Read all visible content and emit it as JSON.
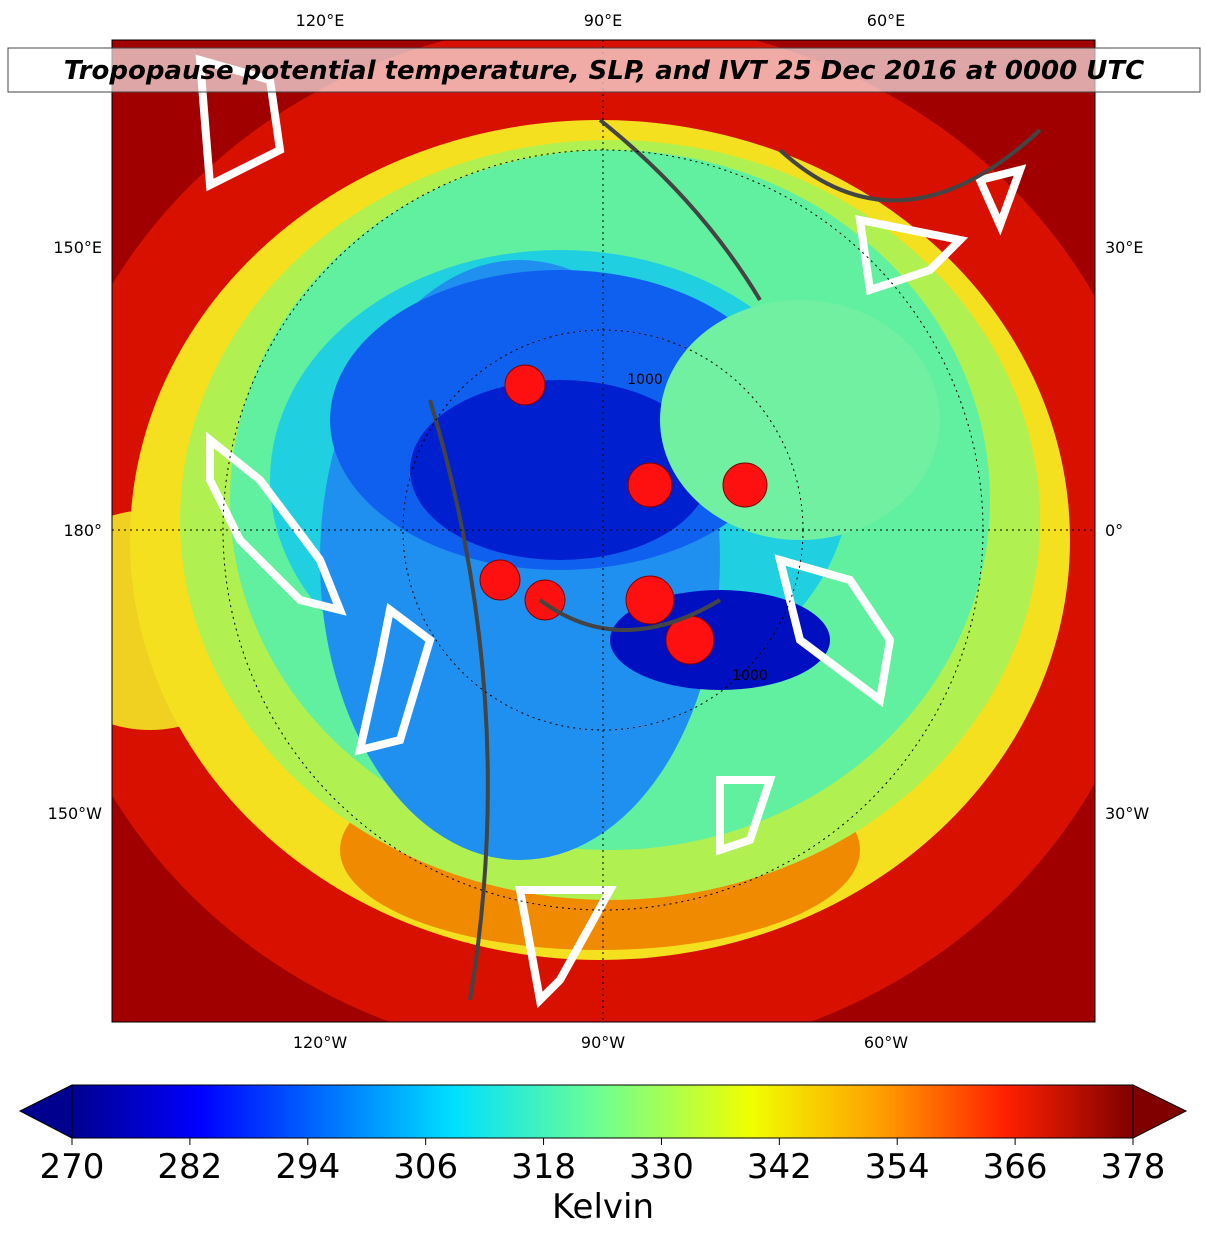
{
  "title": "Tropopause potential temperature, SLP, and IVT 25 Dec 2016 at 0000 UTC",
  "map": {
    "lon_labels_top": [
      "120°E",
      "90°E",
      "60°E"
    ],
    "lon_labels_bottom": [
      "120°W",
      "90°W",
      "60°W"
    ],
    "lon_labels_left": [
      "150°E",
      "180°",
      "150°W"
    ],
    "lon_labels_right": [
      "30°E",
      "0°",
      "30°W"
    ],
    "contour_labels": [
      "1000",
      "1000"
    ]
  },
  "colorbar": {
    "label": "Kelvin",
    "lim": [
      270,
      378
    ],
    "ticks": [
      270,
      282,
      294,
      306,
      318,
      330,
      342,
      354,
      366,
      378
    ]
  }
}
